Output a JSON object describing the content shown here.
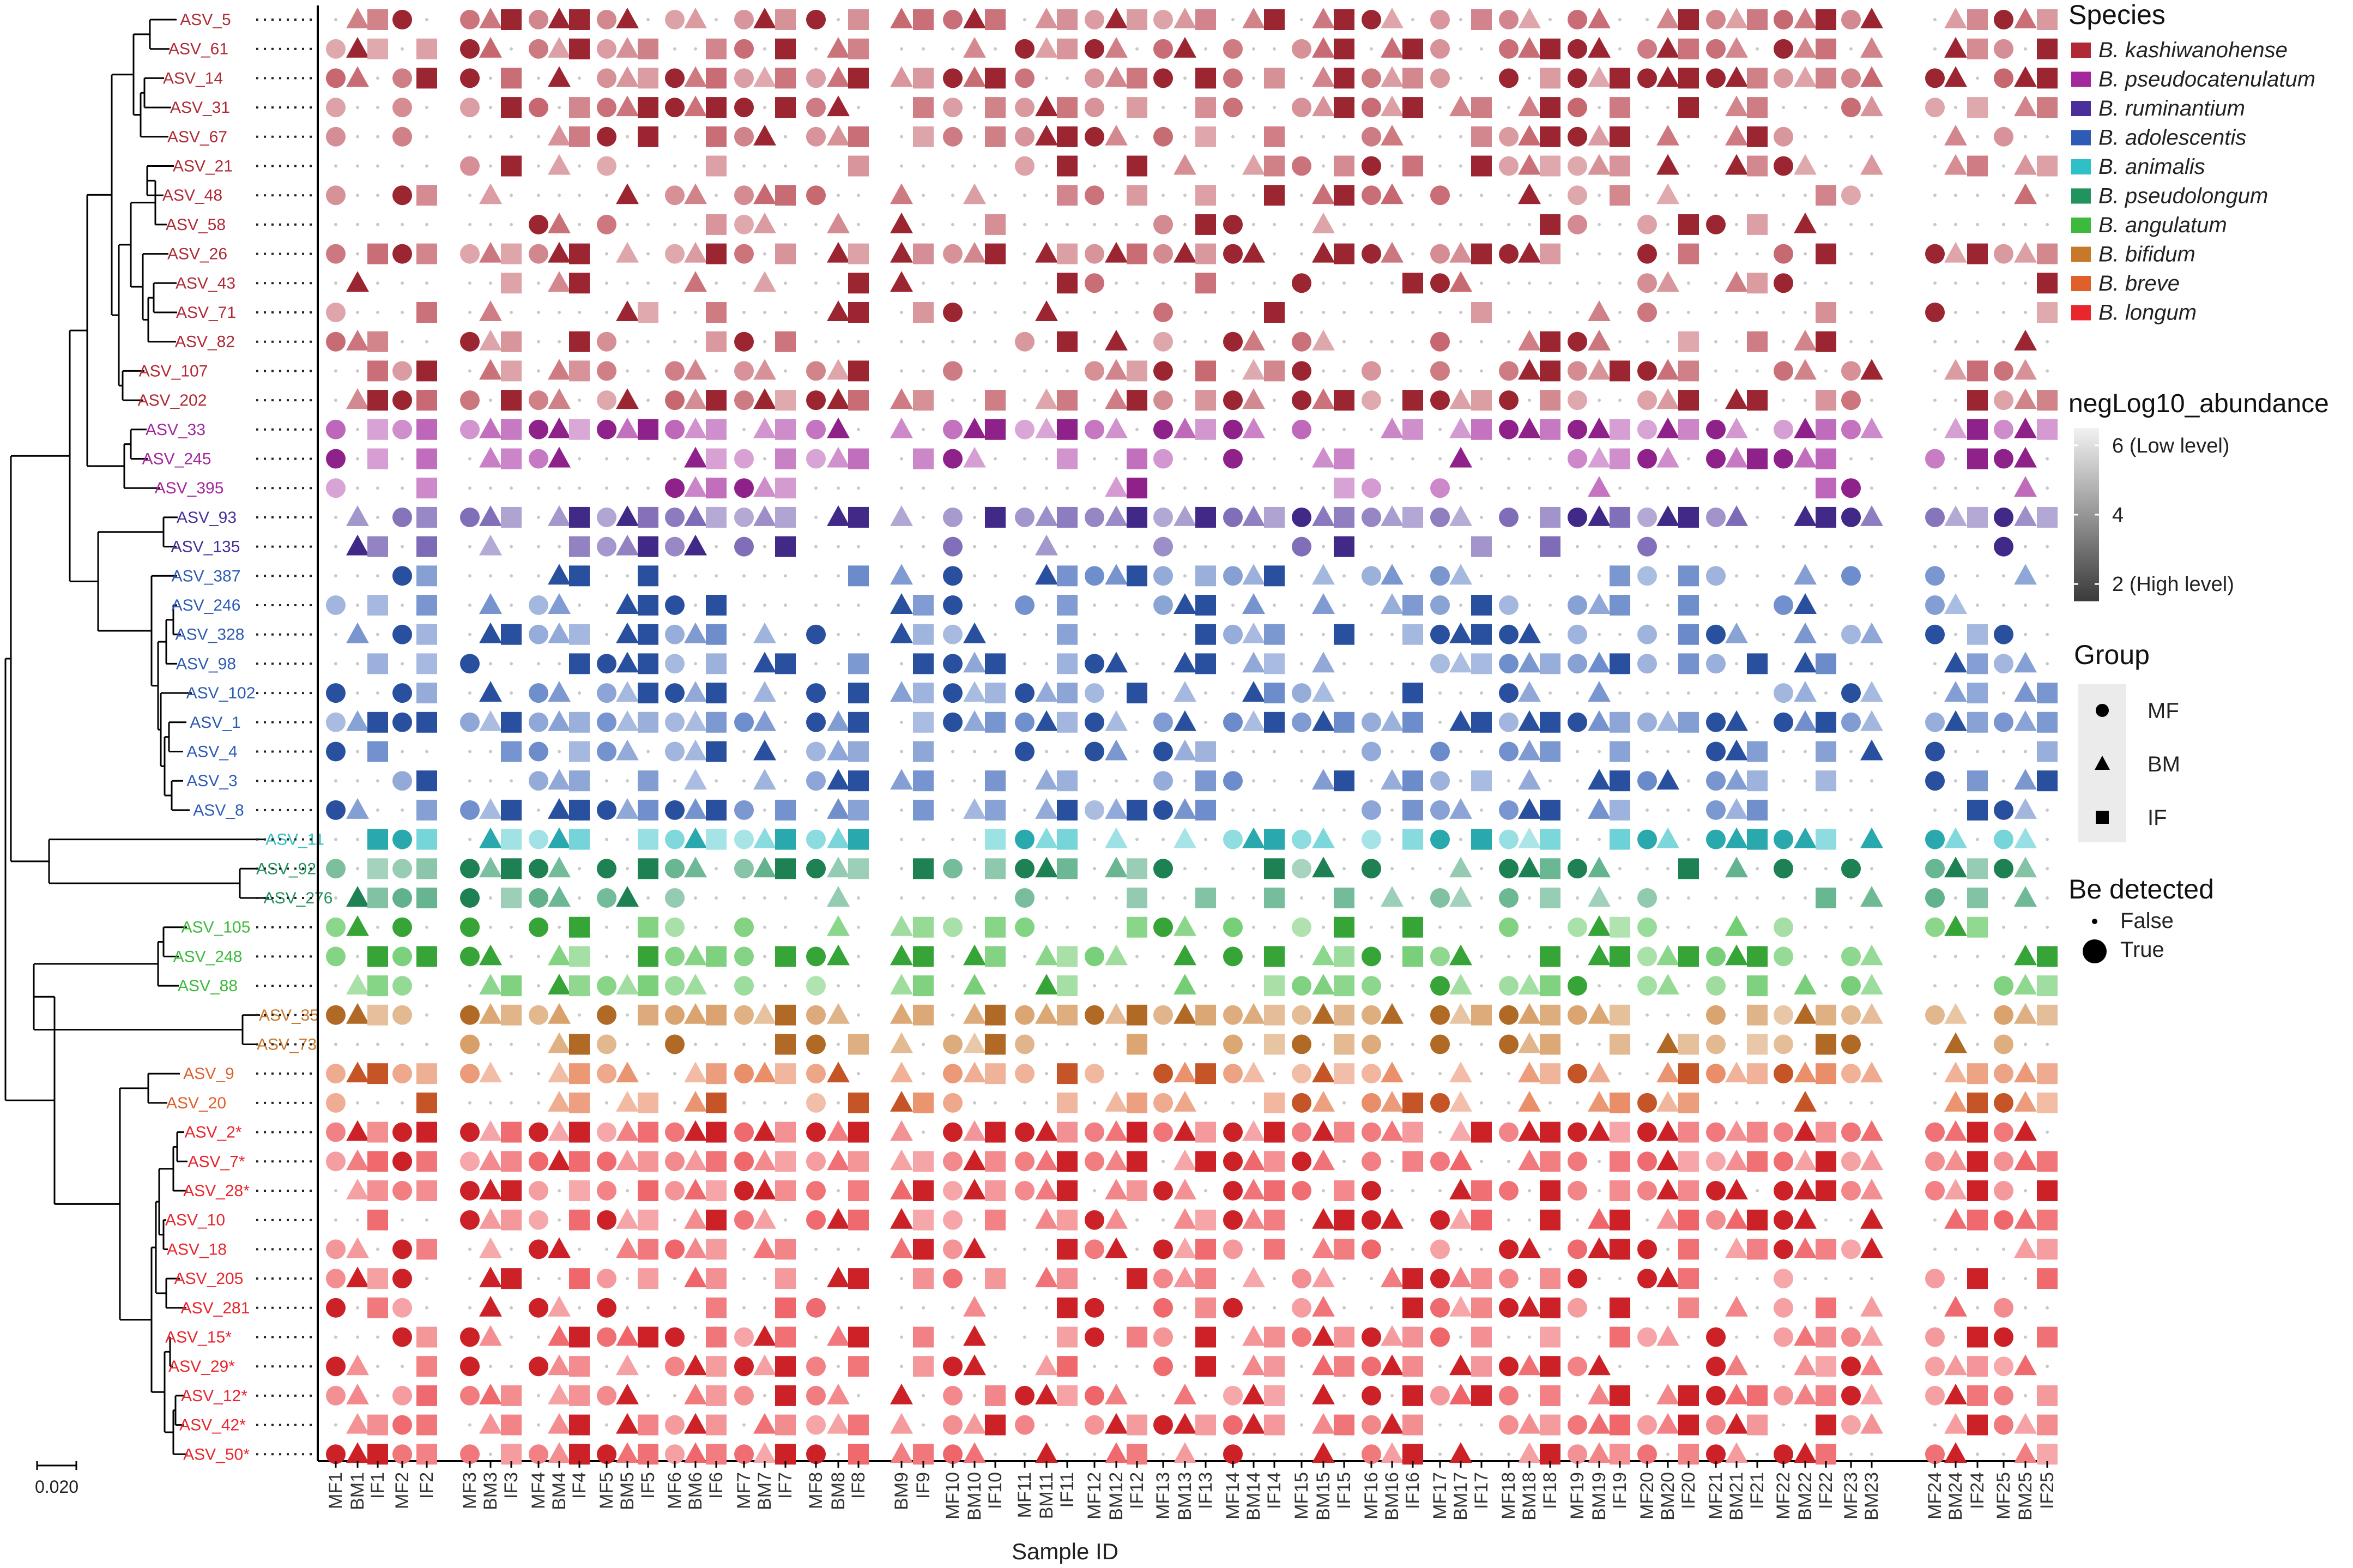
{
  "chart_data": {
    "type": "dot-matrix",
    "xlabel": "Sample ID",
    "ylabel": "",
    "scale_bar_label": "0.020",
    "samples": [
      "MF1",
      "BM1",
      "IF1",
      "MF2",
      "IF2",
      "MF3",
      "BM3",
      "IF3",
      "MF4",
      "BM4",
      "IF4",
      "MF5",
      "BM5",
      "IF5",
      "MF6",
      "BM6",
      "IF6",
      "MF7",
      "BM7",
      "IF7",
      "MF8",
      "BM8",
      "IF8",
      "BM9",
      "IF9",
      "MF10",
      "BM10",
      "IF10",
      "MF11",
      "BM11",
      "IF11",
      "MF12",
      "BM12",
      "IF12",
      "MF13",
      "BM13",
      "IF13",
      "MF14",
      "BM14",
      "IF14",
      "MF15",
      "BM15",
      "IF15",
      "MF16",
      "BM16",
      "IF16",
      "MF17",
      "BM17",
      "IF17",
      "MF18",
      "BM18",
      "IF18",
      "MF19",
      "BM19",
      "IF19",
      "MF20",
      "BM20",
      "IF20",
      "MF21",
      "BM21",
      "IF21",
      "MF22",
      "BM22",
      "IF22",
      "MF23",
      "BM23",
      "MF24",
      "BM24",
      "IF24",
      "MF25",
      "BM25",
      "IF25"
    ],
    "asvs": [
      "ASV_5",
      "ASV_61",
      "ASV_14",
      "ASV_31",
      "ASV_67",
      "ASV_21",
      "ASV_48",
      "ASV_58",
      "ASV_26",
      "ASV_43",
      "ASV_71",
      "ASV_82",
      "ASV_107",
      "ASV_202",
      "ASV_33",
      "ASV_245",
      "ASV_395",
      "ASV_93",
      "ASV_135",
      "ASV_387",
      "ASV_246",
      "ASV_328",
      "ASV_98",
      "ASV_102",
      "ASV_1",
      "ASV_4",
      "ASV_3",
      "ASV_8",
      "ASV_11",
      "ASV_92",
      "ASV_276",
      "ASV_105",
      "ASV_248",
      "ASV_88",
      "ASV_35",
      "ASV_73",
      "ASV_9",
      "ASV_20",
      "ASV_2*",
      "ASV_7*",
      "ASV_28*",
      "ASV_10",
      "ASV_18",
      "ASV_205",
      "ASV_281",
      "ASV_15*",
      "ASV_29*",
      "ASV_12*",
      "ASV_42*",
      "ASV_50*"
    ],
    "asv_species": [
      0,
      0,
      0,
      0,
      0,
      0,
      0,
      0,
      0,
      0,
      0,
      0,
      0,
      0,
      1,
      1,
      1,
      2,
      2,
      3,
      3,
      3,
      3,
      3,
      3,
      3,
      3,
      3,
      4,
      5,
      5,
      6,
      6,
      6,
      7,
      7,
      8,
      8,
      9,
      9,
      9,
      9,
      9,
      9,
      9,
      9,
      9,
      9,
      9,
      9
    ],
    "detection_rate": [
      0.85,
      0.7,
      0.75,
      0.7,
      0.55,
      0.5,
      0.45,
      0.2,
      0.8,
      0.3,
      0.35,
      0.35,
      0.7,
      0.7,
      0.8,
      0.6,
      0.25,
      0.75,
      0.3,
      0.4,
      0.6,
      0.55,
      0.6,
      0.6,
      0.9,
      0.55,
      0.5,
      0.45,
      0.7,
      0.6,
      0.4,
      0.45,
      0.6,
      0.55,
      0.85,
      0.55,
      0.75,
      0.6,
      0.95,
      0.9,
      0.8,
      0.75,
      0.65,
      0.45,
      0.45,
      0.6,
      0.7,
      0.75,
      0.75,
      0.75
    ],
    "species_legend": {
      "title": "Species",
      "items": [
        {
          "name": "B. kashiwanohense",
          "color": "#B02A36"
        },
        {
          "name": "B. pseudocatenulatum",
          "color": "#A3279D"
        },
        {
          "name": "B. ruminantium",
          "color": "#4A2F9A"
        },
        {
          "name": "B. adolescentis",
          "color": "#2E5BB5"
        },
        {
          "name": "B. animalis",
          "color": "#2FBFC6"
        },
        {
          "name": "B. pseudolongum",
          "color": "#21935E"
        },
        {
          "name": "B. angulatum",
          "color": "#3DBA3D"
        },
        {
          "name": "B. bifidum",
          "color": "#C8782A"
        },
        {
          "name": "B. breve",
          "color": "#E0602B"
        },
        {
          "name": "B. longum",
          "color": "#E8262C"
        }
      ]
    },
    "abundance_legend": {
      "title": "negLog10_abundance",
      "labels": [
        "6 (Low level)",
        "4",
        "2 (High level)"
      ],
      "range": [
        1.5,
        6.5
      ]
    },
    "group_legend": {
      "title": "Group",
      "items": [
        {
          "name": "MF",
          "shape": "circle"
        },
        {
          "name": "BM",
          "shape": "triangle"
        },
        {
          "name": "IF",
          "shape": "square"
        }
      ]
    },
    "detected_legend": {
      "title": "Be detected",
      "items": [
        "False",
        "True"
      ]
    }
  }
}
